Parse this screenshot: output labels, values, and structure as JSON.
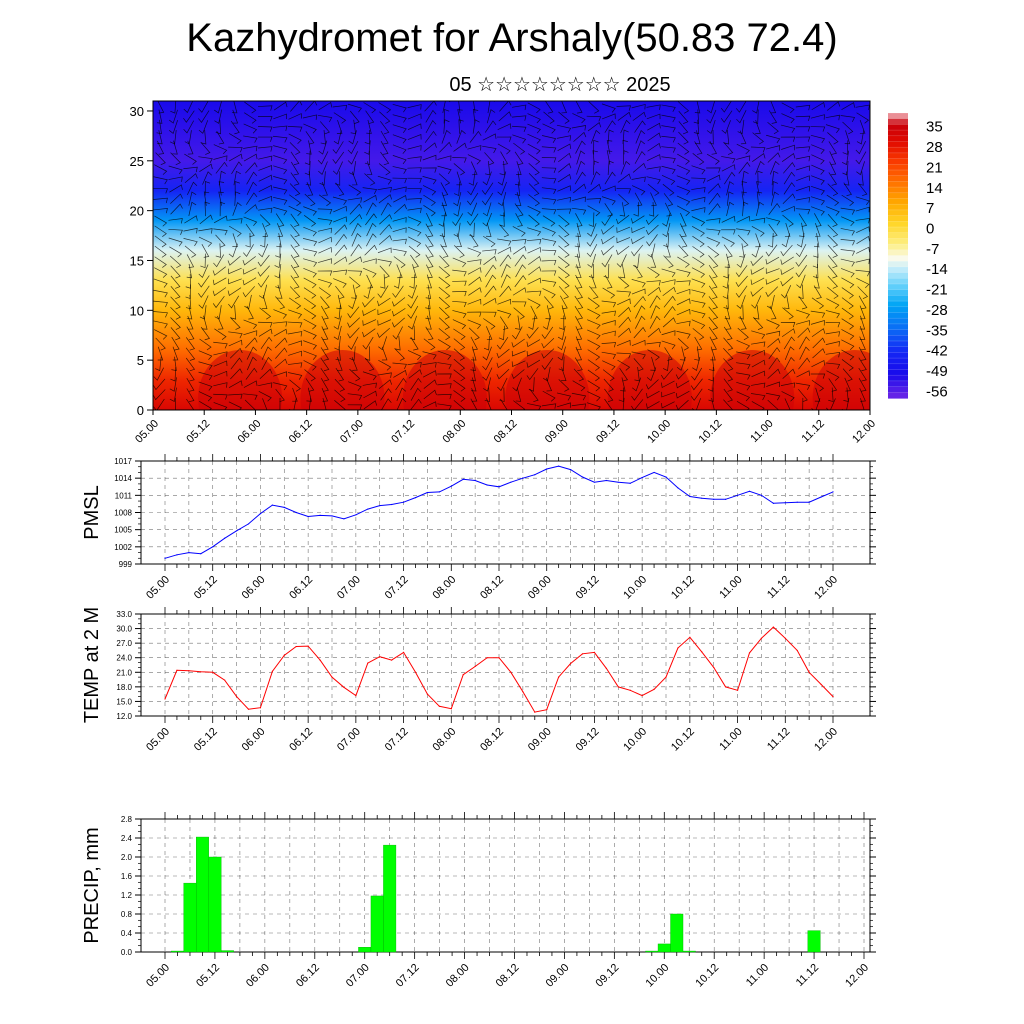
{
  "header": {
    "title": "Kazhydromet for Arshaly(50.83 72.4)",
    "subtitle": "05 ☆☆☆☆☆☆☆☆ 2025"
  },
  "colors": {
    "pmsl_line": "#0000ff",
    "temp_line": "#ff0000",
    "precip_bar": "#00ff00",
    "precip_bar_edge": "#00b000"
  },
  "chart_data": [
    {
      "type": "heatmap",
      "id": "cross-section",
      "title": "",
      "xlabel": "",
      "ylabel": "",
      "x_ticks": [
        "05.00",
        "05.12",
        "06.00",
        "06.12",
        "07.00",
        "07.12",
        "08.00",
        "08.12",
        "09.00",
        "09.12",
        "10.00",
        "10.12",
        "11.00",
        "11.12",
        "12.00"
      ],
      "y_ticks": [
        "0",
        "5",
        "10",
        "15",
        "20",
        "25",
        "30"
      ],
      "ylim": [
        0,
        31
      ],
      "colorbar_labels": [
        "35",
        "28",
        "21",
        "14",
        "7",
        "0",
        "-7",
        "-14",
        "-21",
        "-28",
        "-35",
        "-42",
        "-49",
        "-56"
      ],
      "colorbar_range": [
        -60,
        38
      ],
      "temperature_profile": [
        {
          "height": 0,
          "value": 30
        },
        {
          "height": 3,
          "value": 24
        },
        {
          "height": 6,
          "value": 15
        },
        {
          "height": 10,
          "value": 5
        },
        {
          "height": 13,
          "value": -3
        },
        {
          "height": 16,
          "value": -14
        },
        {
          "height": 19,
          "value": -30
        },
        {
          "height": 22,
          "value": -45
        },
        {
          "height": 25,
          "value": -56
        },
        {
          "height": 31,
          "value": -52
        }
      ],
      "overlay": "wind barbs",
      "grid": false
    },
    {
      "type": "line",
      "id": "pmsl",
      "ylabel": "PMSL",
      "x_ticks": [
        "05.00",
        "05.12",
        "06.00",
        "06.12",
        "07.00",
        "07.12",
        "08.00",
        "08.12",
        "09.00",
        "09.12",
        "10.00",
        "10.12",
        "11.00",
        "11.12",
        "12.00"
      ],
      "y_ticks": [
        "999",
        "1002",
        "1005",
        "1008",
        "1011",
        "1014",
        "1017"
      ],
      "ylim": [
        999,
        1017
      ],
      "x": [
        0,
        3,
        6,
        9,
        12,
        15,
        18,
        21,
        24,
        27,
        30,
        33,
        36,
        39,
        42,
        45,
        48,
        51,
        54,
        57,
        60,
        63,
        66,
        69,
        72,
        75,
        78,
        81,
        84,
        87,
        90,
        93,
        96,
        99,
        102,
        105,
        108,
        111,
        114,
        117,
        120,
        123,
        126,
        129,
        132,
        135,
        138,
        141,
        144,
        147,
        150,
        153,
        156,
        159,
        162,
        165,
        168
      ],
      "values": [
        1000.0,
        1000.6,
        1001.0,
        1000.8,
        1002.0,
        1003.5,
        1004.8,
        1006.0,
        1007.8,
        1009.3,
        1008.9,
        1008.0,
        1007.3,
        1007.5,
        1007.4,
        1006.9,
        1007.6,
        1008.6,
        1009.2,
        1009.4,
        1009.8,
        1010.6,
        1011.5,
        1011.6,
        1012.6,
        1013.8,
        1013.6,
        1012.8,
        1012.5,
        1013.3,
        1014.0,
        1014.6,
        1015.6,
        1016.1,
        1015.5,
        1014.2,
        1013.3,
        1013.6,
        1013.3,
        1013.1,
        1014.1,
        1015.0,
        1014.2,
        1012.3,
        1010.8,
        1010.5,
        1010.3,
        1010.3,
        1011.0,
        1011.7,
        1011.0,
        1009.6,
        1009.7,
        1009.8,
        1009.8,
        1010.7,
        1011.6
      ],
      "grid": true
    },
    {
      "type": "line",
      "id": "temp",
      "ylabel": "TEMP at 2 M",
      "x_ticks": [
        "05.00",
        "05.12",
        "06.00",
        "06.12",
        "07.00",
        "07.12",
        "08.00",
        "08.12",
        "09.00",
        "09.12",
        "10.00",
        "10.12",
        "11.00",
        "11.12",
        "12.00"
      ],
      "y_ticks": [
        "12.0",
        "15.0",
        "18.0",
        "21.0",
        "24.0",
        "27.0",
        "30.0",
        "33.0"
      ],
      "ylim": [
        12,
        33
      ],
      "x": [
        0,
        3,
        6,
        9,
        12,
        15,
        18,
        21,
        24,
        27,
        30,
        33,
        36,
        39,
        42,
        45,
        48,
        51,
        54,
        57,
        60,
        63,
        66,
        69,
        72,
        75,
        78,
        81,
        84,
        87,
        90,
        93,
        96,
        99,
        102,
        105,
        108,
        111,
        114,
        117,
        120,
        123,
        126,
        129,
        132,
        135,
        138,
        141,
        144,
        147,
        150,
        153,
        156,
        159,
        162,
        165,
        168
      ],
      "values": [
        15.5,
        21.4,
        21.3,
        21.1,
        21.0,
        19.4,
        16.0,
        13.4,
        13.7,
        21.2,
        24.5,
        26.3,
        26.4,
        23.5,
        20.0,
        17.9,
        16.2,
        22.9,
        24.2,
        23.5,
        25.1,
        21.0,
        16.5,
        14.0,
        13.5,
        20.5,
        22.2,
        24.0,
        24.0,
        21.0,
        17.0,
        12.8,
        13.3,
        20.0,
        22.8,
        24.8,
        25.1,
        21.8,
        18.0,
        17.3,
        16.2,
        17.5,
        20.0,
        26.0,
        28.2,
        25.2,
        22.0,
        18.0,
        17.3,
        25.0,
        28.0,
        30.3,
        28.0,
        25.5,
        21.0,
        18.5,
        16.0
      ],
      "grid": true
    },
    {
      "type": "bar",
      "id": "precip",
      "ylabel": "PRECIP, mm",
      "x_ticks": [
        "05.00",
        "05.12",
        "06.00",
        "06.12",
        "07.00",
        "07.12",
        "08.00",
        "08.12",
        "09.00",
        "09.12",
        "10.00",
        "10.12",
        "11.00",
        "11.12",
        "12.00"
      ],
      "y_ticks": [
        "0.0",
        "0.4",
        "0.8",
        "1.2",
        "1.6",
        "2.0",
        "2.4",
        "2.8"
      ],
      "ylim": [
        0,
        2.8
      ],
      "bars": [
        {
          "x": 3,
          "value": 0.02
        },
        {
          "x": 6,
          "value": 1.45
        },
        {
          "x": 9,
          "value": 2.42
        },
        {
          "x": 12,
          "value": 2.0
        },
        {
          "x": 15,
          "value": 0.03
        },
        {
          "x": 48,
          "value": 0.1
        },
        {
          "x": 51,
          "value": 1.18
        },
        {
          "x": 54,
          "value": 2.25
        },
        {
          "x": 117,
          "value": 0.02
        },
        {
          "x": 120,
          "value": 0.17
        },
        {
          "x": 123,
          "value": 0.8
        },
        {
          "x": 126,
          "value": 0.02
        },
        {
          "x": 156,
          "value": 0.45
        }
      ],
      "grid": true
    }
  ]
}
